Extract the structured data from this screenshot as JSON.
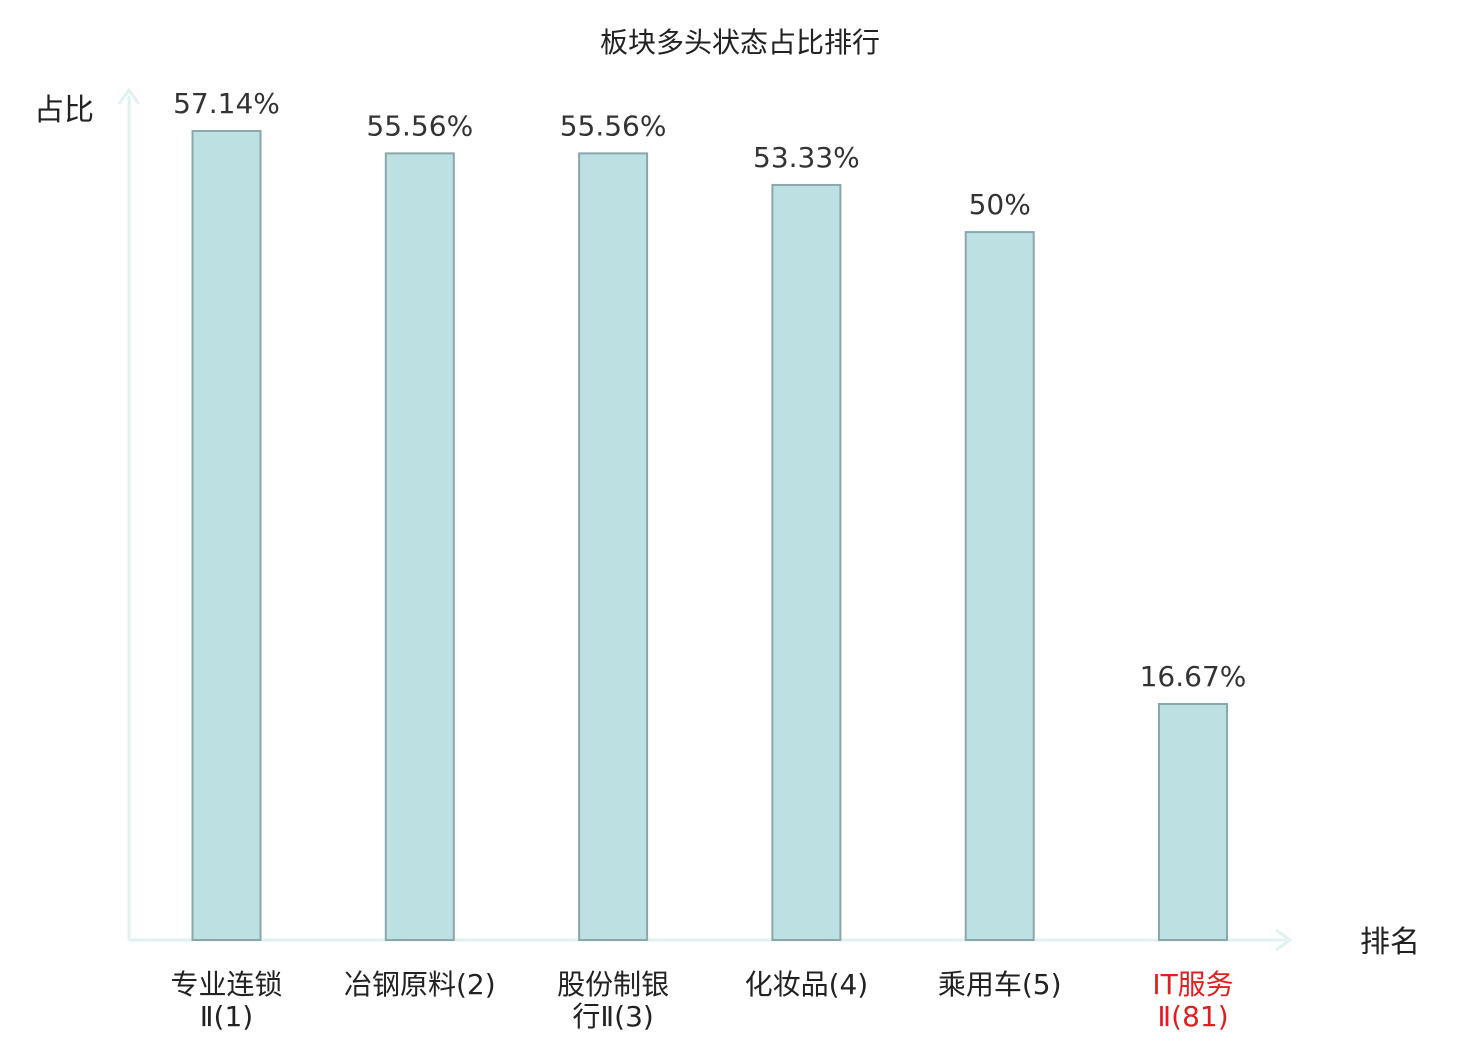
{
  "chart_data": {
    "type": "bar",
    "title": "板块多头状态占比排行",
    "ylabel": "占比",
    "xlabel": "排名",
    "categories": [
      {
        "lines": [
          "专业连锁",
          "Ⅱ(1)"
        ],
        "highlight": false
      },
      {
        "lines": [
          "冶钢原料(2)"
        ],
        "highlight": false
      },
      {
        "lines": [
          "股份制银",
          "行Ⅱ(3)"
        ],
        "highlight": false
      },
      {
        "lines": [
          "化妆品(4)"
        ],
        "highlight": false
      },
      {
        "lines": [
          "乘用车(5)"
        ],
        "highlight": false
      },
      {
        "lines": [
          "IT服务",
          "Ⅱ(81)"
        ],
        "highlight": true
      }
    ],
    "values": [
      57.14,
      55.56,
      55.56,
      53.33,
      50,
      16.67
    ],
    "value_labels": [
      "57.14%",
      "55.56%",
      "55.56%",
      "53.33%",
      "50%",
      "16.67%"
    ],
    "ylim": [
      0,
      60
    ],
    "grid": false,
    "colors": {
      "bar_fill": "#bde0e3",
      "bar_stroke": "#8aa8aa",
      "axis": "#e0f2ef",
      "highlight": "#e02020"
    }
  }
}
